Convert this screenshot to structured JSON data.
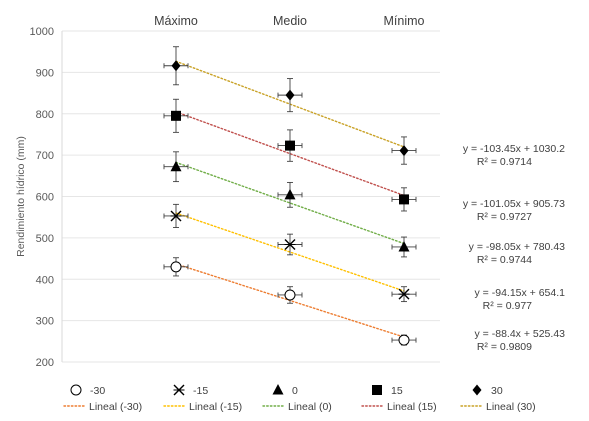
{
  "chart_data": {
    "type": "scatter",
    "title": "",
    "xlabel": "",
    "ylabel": "Rendimiento hídrico (mm)",
    "categories": [
      "Máximo",
      "Medio",
      "Mínimo"
    ],
    "x": [
      1,
      2,
      3
    ],
    "ylim": [
      200,
      1000
    ],
    "yticks": [
      "200",
      "300",
      "400",
      "500",
      "600",
      "700",
      "800",
      "900",
      "1000"
    ],
    "grid": true,
    "legend_position": "bottom",
    "colors": {
      "axis": "#d9d9d9",
      "grid": "#e6e6e6",
      "marker": "#000000",
      "errorbar": "#404040"
    },
    "series": [
      {
        "name": "-30",
        "marker": "circle-open",
        "values": [
          430,
          362,
          253
        ],
        "errors": [
          22,
          20,
          12
        ],
        "trend": {
          "name": "Lineal (-30)",
          "color": "#ED7D31",
          "slope": -88.4,
          "intercept": 525.43,
          "equation": "y = -88.4x + 525.43",
          "r2": "R² = 0.9809"
        }
      },
      {
        "name": "-15",
        "marker": "x",
        "values": [
          553,
          484,
          364
        ],
        "errors": [
          28,
          25,
          18
        ],
        "trend": {
          "name": "Lineal (-15)",
          "color": "#FFC000",
          "slope": -94.15,
          "intercept": 654.1,
          "equation": "y = -94.15x + 654.1",
          "r2": "R² = 0.977"
        }
      },
      {
        "name": "0",
        "marker": "triangle",
        "values": [
          672,
          604,
          478
        ],
        "errors": [
          36,
          30,
          24
        ],
        "trend": {
          "name": "Lineal (0)",
          "color": "#70AD47",
          "slope": -98.05,
          "intercept": 780.43,
          "equation": "y = -98.05x + 780.43",
          "r2": "R² = 0.9744"
        }
      },
      {
        "name": "15",
        "marker": "square",
        "values": [
          795,
          723,
          593
        ],
        "errors": [
          40,
          38,
          28
        ],
        "trend": {
          "name": "Lineal (15)",
          "color": "#C0504D",
          "slope": -101.05,
          "intercept": 905.73,
          "equation": "y = -101.05x + 905.73",
          "r2": "R² = 0.9727"
        }
      },
      {
        "name": "30",
        "marker": "diamond",
        "values": [
          916,
          845,
          711
        ],
        "errors": [
          46,
          40,
          33
        ],
        "trend": {
          "name": "Lineal (30)",
          "color": "#C9A227",
          "slope": -103.45,
          "intercept": 1030.2,
          "equation": "y = -103.45x + 1030.2",
          "r2": "R² = 0.9714"
        }
      }
    ]
  }
}
